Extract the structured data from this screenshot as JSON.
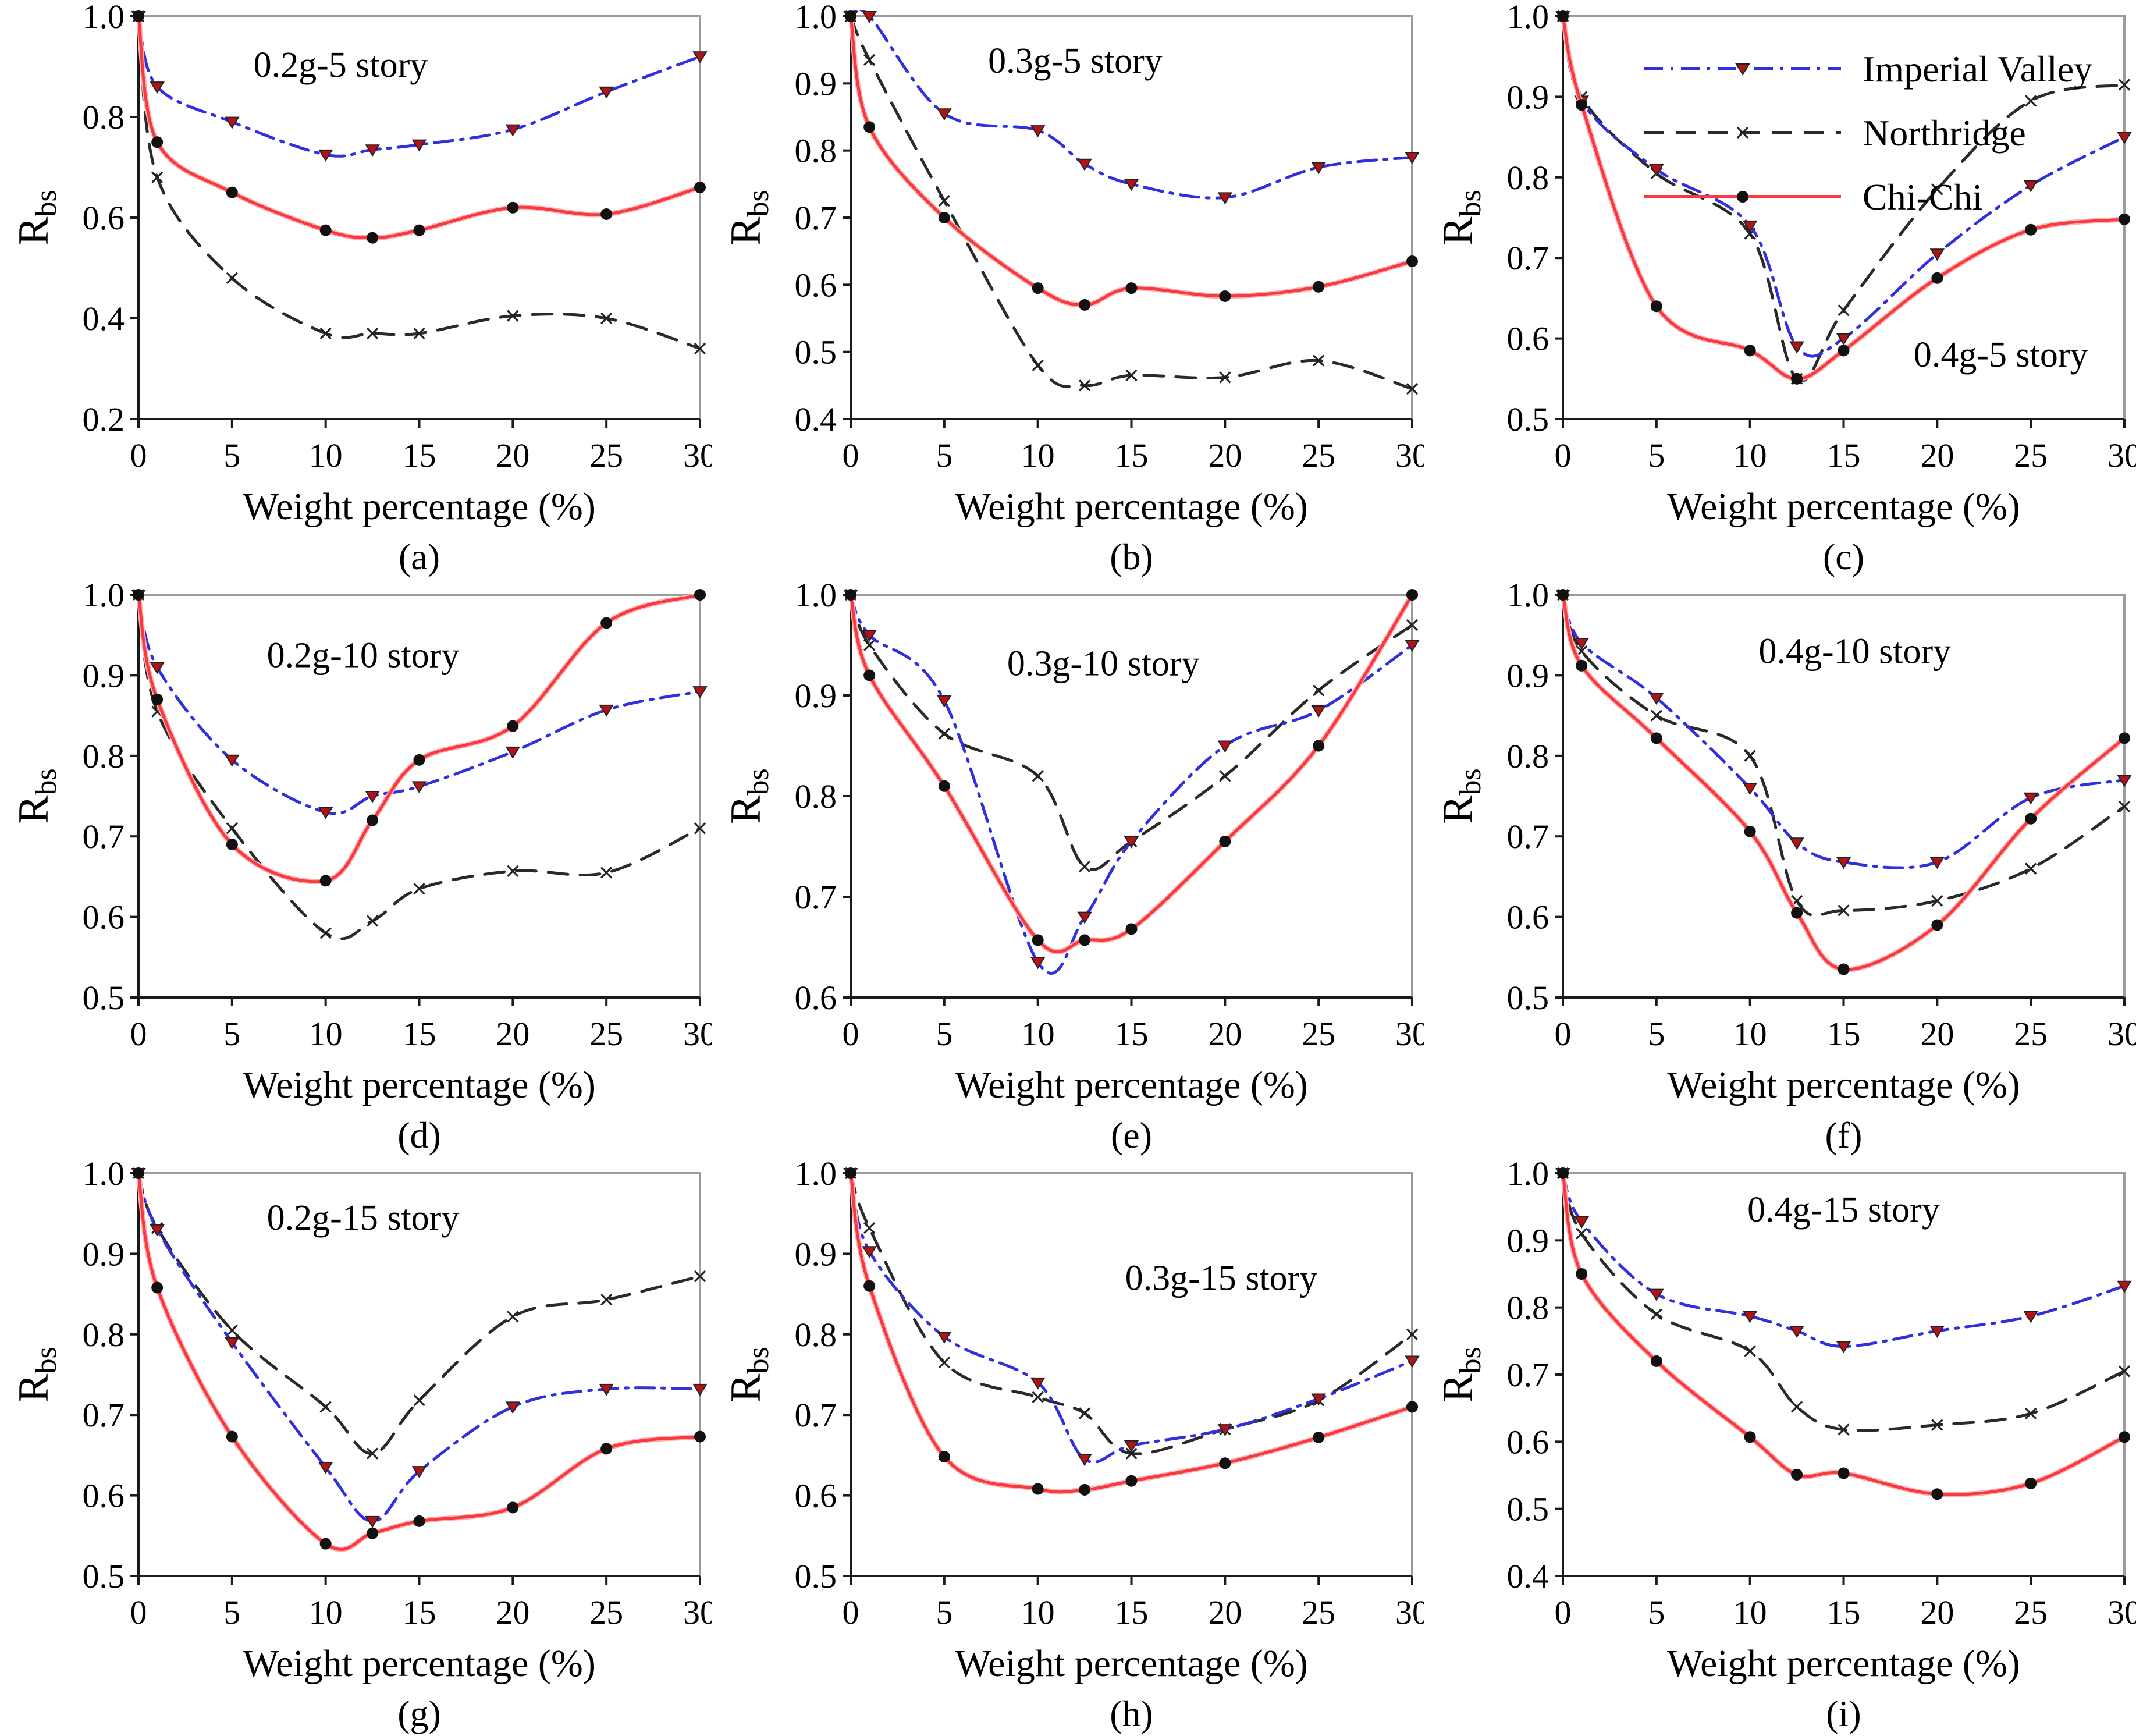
{
  "chart_data": {
    "type": "line",
    "xlabel": "Weight percentage (%)",
    "ylabel_main": "R",
    "ylabel_sub": "bs",
    "xlim": [
      0,
      30
    ],
    "xticks": [
      "0",
      "5",
      "10",
      "15",
      "20",
      "25",
      "30"
    ],
    "xtick_values": [
      0,
      5,
      10,
      15,
      20,
      25,
      30
    ],
    "x_values": [
      0,
      1,
      5,
      10,
      12.5,
      15,
      20,
      25,
      30
    ],
    "legend": {
      "position": "top-left-of-chart-c",
      "items": [
        {
          "name": "Imperial Valley",
          "key": "imperial_valley",
          "color": "#3030e0",
          "line_style": "dashdot",
          "marker": "triangle-down",
          "marker_color": "#b51217"
        },
        {
          "name": "Northridge",
          "key": "northridge",
          "color": "#2a2a2a",
          "line_style": "dashed",
          "marker": "x",
          "marker_color": "#2a2a2a"
        },
        {
          "name": "Chi-Chi",
          "key": "chi_chi",
          "color": "#f8393f",
          "line_style": "solid",
          "marker": "circle",
          "marker_color": "#111111"
        }
      ]
    },
    "charts": [
      {
        "label": "(a)",
        "annotation": "0.2g-5 story",
        "ann_x": 0.36,
        "ann_y": 0.15,
        "ylim": [
          0.2,
          1.0
        ],
        "yticks": [
          "0.2",
          "0.4",
          "0.6",
          "0.8",
          "1.0"
        ],
        "ytick_values": [
          0.2,
          0.4,
          0.6,
          0.8,
          1.0
        ],
        "has_legend": false,
        "series": {
          "imperial_valley": [
            1.0,
            0.86,
            0.79,
            0.725,
            0.735,
            0.745,
            0.775,
            0.85,
            0.92
          ],
          "northridge": [
            1.0,
            0.68,
            0.48,
            0.37,
            0.37,
            0.37,
            0.405,
            0.4,
            0.34
          ],
          "chi_chi": [
            1.0,
            0.75,
            0.65,
            0.575,
            0.56,
            0.575,
            0.62,
            0.607,
            0.66
          ]
        }
      },
      {
        "label": "(b)",
        "annotation": "0.3g-5 story",
        "ann_x": 0.4,
        "ann_y": 0.14,
        "ylim": [
          0.4,
          1.0
        ],
        "yticks": [
          "0.4",
          "0.5",
          "0.6",
          "0.7",
          "0.8",
          "0.9",
          "1.0"
        ],
        "ytick_values": [
          0.4,
          0.5,
          0.6,
          0.7,
          0.8,
          0.9,
          1.0
        ],
        "has_legend": false,
        "series": {
          "imperial_valley": [
            1.0,
            1.0,
            0.855,
            0.83,
            0.78,
            0.75,
            0.73,
            0.775,
            0.79
          ],
          "northridge": [
            1.0,
            0.935,
            0.725,
            0.48,
            0.45,
            0.465,
            0.462,
            0.487,
            0.445
          ],
          "chi_chi": [
            1.0,
            0.835,
            0.7,
            0.595,
            0.57,
            0.595,
            0.583,
            0.597,
            0.635
          ]
        }
      },
      {
        "label": "(c)",
        "annotation": "0.4g-5 story",
        "ann_x": 0.78,
        "ann_y": 0.87,
        "ylim": [
          0.5,
          1.0
        ],
        "yticks": [
          "0.5",
          "0.6",
          "0.7",
          "0.8",
          "0.9",
          "1.0"
        ],
        "ytick_values": [
          0.5,
          0.6,
          0.7,
          0.8,
          0.9,
          1.0
        ],
        "has_legend": true,
        "series": {
          "imperial_valley": [
            1.0,
            0.895,
            0.81,
            0.74,
            0.59,
            0.6,
            0.705,
            0.79,
            0.85
          ],
          "northridge": [
            1.0,
            0.9,
            0.805,
            0.73,
            0.55,
            0.635,
            0.785,
            0.895,
            0.915
          ],
          "chi_chi": [
            1.0,
            0.89,
            0.64,
            0.585,
            0.55,
            0.585,
            0.675,
            0.735,
            0.748
          ]
        }
      },
      {
        "label": "(d)",
        "annotation": "0.2g-10 story",
        "ann_x": 0.4,
        "ann_y": 0.18,
        "ylim": [
          0.5,
          1.0
        ],
        "yticks": [
          "0.5",
          "0.6",
          "0.7",
          "0.8",
          "0.9",
          "1.0"
        ],
        "ytick_values": [
          0.5,
          0.6,
          0.7,
          0.8,
          0.9,
          1.0
        ],
        "has_legend": false,
        "series": {
          "imperial_valley": [
            1.0,
            0.91,
            0.795,
            0.73,
            0.75,
            0.762,
            0.805,
            0.857,
            0.88
          ],
          "northridge": [
            1.0,
            0.855,
            0.71,
            0.58,
            0.595,
            0.635,
            0.657,
            0.655,
            0.71
          ],
          "chi_chi": [
            1.0,
            0.87,
            0.69,
            0.645,
            0.72,
            0.795,
            0.837,
            0.965,
            1.0
          ]
        }
      },
      {
        "label": "(e)",
        "annotation": "0.3g-10 story",
        "ann_x": 0.45,
        "ann_y": 0.2,
        "ylim": [
          0.6,
          1.0
        ],
        "yticks": [
          "0.6",
          "0.7",
          "0.8",
          "0.9",
          "1.0"
        ],
        "ytick_values": [
          0.6,
          0.7,
          0.8,
          0.9,
          1.0
        ],
        "has_legend": false,
        "series": {
          "imperial_valley": [
            1.0,
            0.96,
            0.895,
            0.635,
            0.68,
            0.755,
            0.85,
            0.885,
            0.95
          ],
          "northridge": [
            1.0,
            0.95,
            0.862,
            0.82,
            0.73,
            0.755,
            0.82,
            0.905,
            0.97
          ],
          "chi_chi": [
            1.0,
            0.92,
            0.81,
            0.657,
            0.657,
            0.668,
            0.755,
            0.85,
            1.0
          ]
        }
      },
      {
        "label": "(f)",
        "annotation": "0.4g-10 story",
        "ann_x": 0.52,
        "ann_y": 0.17,
        "ylim": [
          0.5,
          1.0
        ],
        "yticks": [
          "0.5",
          "0.6",
          "0.7",
          "0.8",
          "0.9",
          "1.0"
        ],
        "ytick_values": [
          0.5,
          0.6,
          0.7,
          0.8,
          0.9,
          1.0
        ],
        "has_legend": false,
        "series": {
          "imperial_valley": [
            1.0,
            0.94,
            0.872,
            0.76,
            0.692,
            0.668,
            0.668,
            0.748,
            0.77
          ],
          "northridge": [
            1.0,
            0.93,
            0.85,
            0.8,
            0.62,
            0.608,
            0.62,
            0.66,
            0.737
          ],
          "chi_chi": [
            1.0,
            0.912,
            0.822,
            0.706,
            0.605,
            0.535,
            0.59,
            0.722,
            0.822
          ]
        }
      },
      {
        "label": "(g)",
        "annotation": "0.2g-15 story",
        "ann_x": 0.4,
        "ann_y": 0.14,
        "ylim": [
          0.5,
          1.0
        ],
        "yticks": [
          "0.5",
          "0.6",
          "0.7",
          "0.8",
          "0.9",
          "1.0"
        ],
        "ytick_values": [
          0.5,
          0.6,
          0.7,
          0.8,
          0.9,
          1.0
        ],
        "has_legend": false,
        "series": {
          "imperial_valley": [
            1.0,
            0.93,
            0.79,
            0.635,
            0.568,
            0.63,
            0.71,
            0.732,
            0.732
          ],
          "northridge": [
            1.0,
            0.932,
            0.805,
            0.71,
            0.652,
            0.718,
            0.822,
            0.843,
            0.872
          ],
          "chi_chi": [
            1.0,
            0.858,
            0.673,
            0.54,
            0.553,
            0.568,
            0.585,
            0.658,
            0.673
          ]
        }
      },
      {
        "label": "(h)",
        "annotation": "0.3g-15 story",
        "ann_x": 0.66,
        "ann_y": 0.29,
        "ylim": [
          0.5,
          1.0
        ],
        "yticks": [
          "0.5",
          "0.6",
          "0.7",
          "0.8",
          "0.9",
          "1.0"
        ],
        "ytick_values": [
          0.5,
          0.6,
          0.7,
          0.8,
          0.9,
          1.0
        ],
        "has_legend": false,
        "series": {
          "imperial_valley": [
            1.0,
            0.903,
            0.797,
            0.74,
            0.645,
            0.662,
            0.682,
            0.72,
            0.767
          ],
          "northridge": [
            1.0,
            0.932,
            0.765,
            0.722,
            0.702,
            0.652,
            0.682,
            0.718,
            0.8
          ],
          "chi_chi": [
            1.0,
            0.86,
            0.648,
            0.608,
            0.607,
            0.618,
            0.64,
            0.672,
            0.71
          ]
        }
      },
      {
        "label": "(i)",
        "annotation": "0.4g-15 story",
        "ann_x": 0.5,
        "ann_y": 0.12,
        "ylim": [
          0.4,
          1.0
        ],
        "yticks": [
          "0.4",
          "0.5",
          "0.6",
          "0.7",
          "0.8",
          "0.9",
          "1.0"
        ],
        "ytick_values": [
          0.4,
          0.5,
          0.6,
          0.7,
          0.8,
          0.9,
          1.0
        ],
        "has_legend": false,
        "series": {
          "imperial_valley": [
            1.0,
            0.928,
            0.82,
            0.787,
            0.765,
            0.742,
            0.765,
            0.787,
            0.832
          ],
          "northridge": [
            1.0,
            0.91,
            0.79,
            0.735,
            0.652,
            0.618,
            0.625,
            0.642,
            0.705
          ],
          "chi_chi": [
            1.0,
            0.85,
            0.72,
            0.607,
            0.551,
            0.553,
            0.522,
            0.538,
            0.607
          ]
        }
      }
    ],
    "style": {
      "frame_color": "#9c9c9c",
      "axis_color": "#1a1a1a",
      "imperial_valley_color": "#3030e0",
      "northridge_color": "#2a2a2a",
      "chi_chi_color": "#f8393f",
      "triangle_fill": "#b51217",
      "background": "#ffffff"
    }
  }
}
